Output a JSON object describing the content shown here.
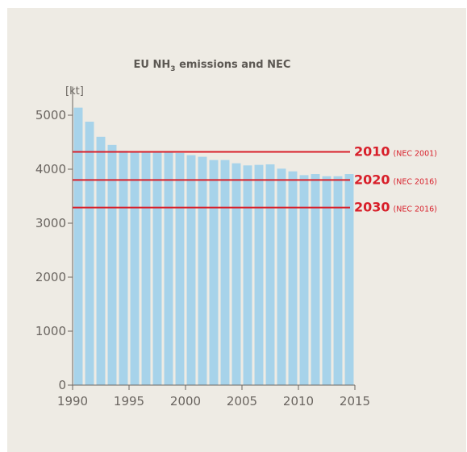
{
  "chart_data": {
    "type": "bar",
    "title_parts": {
      "before": "EU NH",
      "subscript": "3",
      "after": " emissions and NEC"
    },
    "ylabel": "[kt]",
    "xlabel": "",
    "ylim": [
      0,
      5500
    ],
    "xlim": [
      1990,
      2015
    ],
    "yticks": [
      0,
      1000,
      2000,
      3000,
      4000,
      5000
    ],
    "xticks": [
      1990,
      1995,
      2000,
      2005,
      2010,
      2015
    ],
    "grid": false,
    "x": [
      1990,
      1991,
      1992,
      1993,
      1994,
      1995,
      1996,
      1997,
      1998,
      1999,
      2000,
      2001,
      2002,
      2003,
      2004,
      2005,
      2006,
      2007,
      2008,
      2009,
      2010,
      2011,
      2012,
      2013,
      2014
    ],
    "values": [
      5140,
      4880,
      4600,
      4450,
      4340,
      4320,
      4320,
      4330,
      4320,
      4300,
      4260,
      4230,
      4170,
      4170,
      4110,
      4070,
      4080,
      4090,
      4010,
      3960,
      3890,
      3910,
      3870,
      3870,
      3910
    ],
    "bar_color": "#a7d3ea",
    "reference_lines": [
      {
        "value": 4320,
        "year_label": "2010",
        "note": "(NEC 2001)",
        "color": "#d81f2a"
      },
      {
        "value": 3800,
        "year_label": "2020",
        "note": "(NEC 2016)",
        "color": "#d81f2a"
      },
      {
        "value": 3290,
        "year_label": "2030",
        "note": "(NEC 2016)",
        "color": "#d81f2a"
      }
    ]
  }
}
